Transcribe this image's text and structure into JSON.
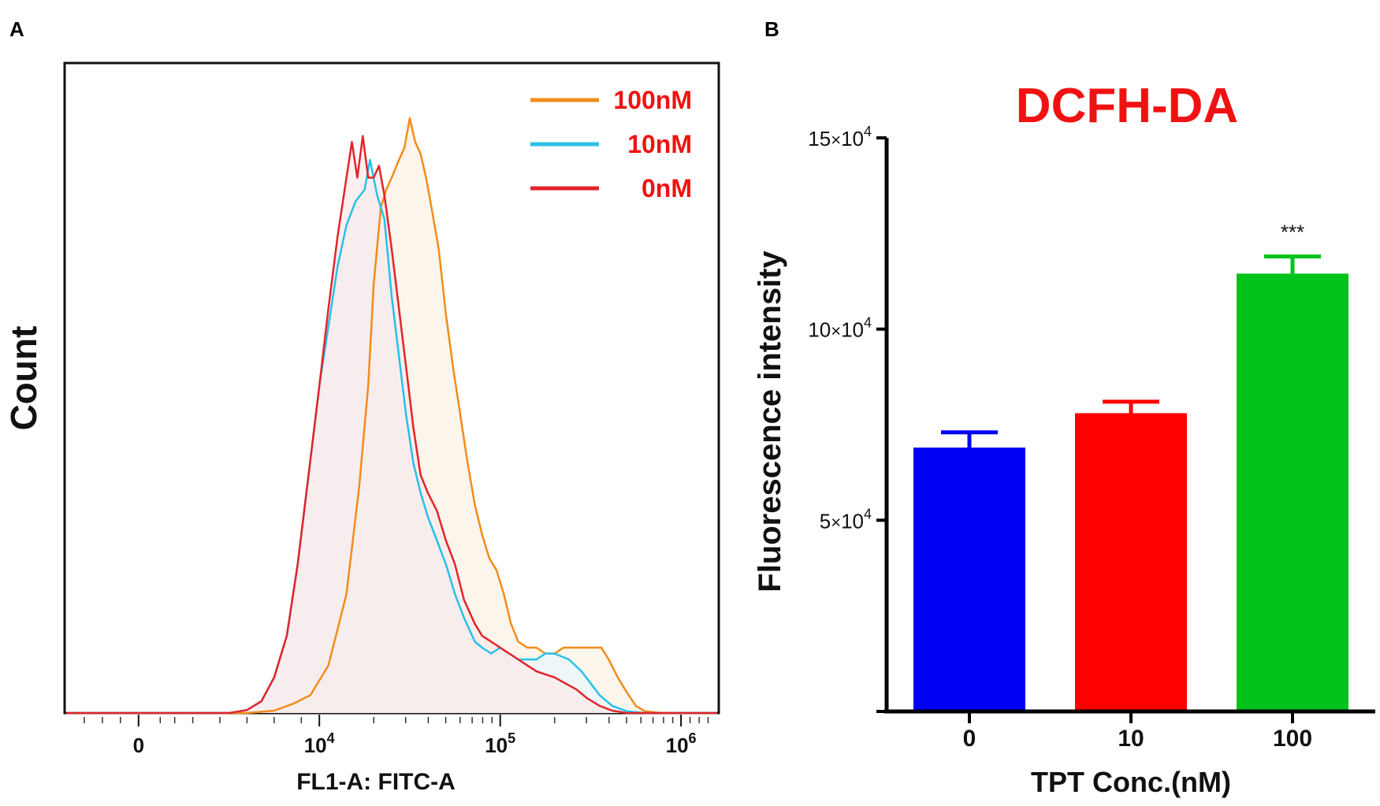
{
  "chart_data": [
    {
      "panel": "A",
      "type": "line",
      "xlabel": "FL1-A: FITC-A",
      "ylabel": "Count",
      "x_scale": "log (display)",
      "x_ticks": [
        {
          "value": 0,
          "base": "0",
          "exp": ""
        },
        {
          "value": 10000,
          "base": "10",
          "exp": "4"
        },
        {
          "value": 100000,
          "base": "10",
          "exp": "5"
        },
        {
          "value": 1000000,
          "base": "10",
          "exp": "6"
        }
      ],
      "y_range": [
        0,
        1
      ],
      "legend_placement": "top-right",
      "series": [
        {
          "name": "100nM",
          "color": "#f28c1b",
          "fill": "#fbf1e6",
          "points": [
            [
              -0.4,
              0.0
            ],
            [
              0.0,
              0.0
            ],
            [
              0.2,
              0.0
            ],
            [
              0.4,
              0.0
            ],
            [
              0.6,
              0.0
            ],
            [
              0.75,
              0.004
            ],
            [
              0.85,
              0.015
            ],
            [
              0.95,
              0.03
            ],
            [
              1.05,
              0.08
            ],
            [
              1.15,
              0.2
            ],
            [
              1.22,
              0.38
            ],
            [
              1.27,
              0.55
            ],
            [
              1.3,
              0.72
            ],
            [
              1.34,
              0.85
            ],
            [
              1.37,
              0.88
            ],
            [
              1.4,
              0.9
            ],
            [
              1.44,
              0.93
            ],
            [
              1.47,
              0.95
            ],
            [
              1.5,
              1.0
            ],
            [
              1.53,
              0.96
            ],
            [
              1.56,
              0.94
            ],
            [
              1.59,
              0.9
            ],
            [
              1.62,
              0.85
            ],
            [
              1.66,
              0.78
            ],
            [
              1.7,
              0.67
            ],
            [
              1.74,
              0.58
            ],
            [
              1.78,
              0.5
            ],
            [
              1.82,
              0.42
            ],
            [
              1.86,
              0.35
            ],
            [
              1.9,
              0.3
            ],
            [
              1.94,
              0.26
            ],
            [
              1.98,
              0.24
            ],
            [
              2.02,
              0.2
            ],
            [
              2.06,
              0.15
            ],
            [
              2.1,
              0.12
            ],
            [
              2.15,
              0.11
            ],
            [
              2.2,
              0.11
            ],
            [
              2.25,
              0.1
            ],
            [
              2.3,
              0.1
            ],
            [
              2.35,
              0.11
            ],
            [
              2.4,
              0.11
            ],
            [
              2.45,
              0.11
            ],
            [
              2.5,
              0.11
            ],
            [
              2.56,
              0.11
            ],
            [
              2.6,
              0.09
            ],
            [
              2.65,
              0.06
            ],
            [
              2.7,
              0.035
            ],
            [
              2.75,
              0.012
            ],
            [
              2.8,
              0.003
            ],
            [
              2.9,
              0.0
            ],
            [
              3.2,
              0.0
            ]
          ]
        },
        {
          "name": "10nM",
          "color": "#27c1e8",
          "fill": "#eaf6fb",
          "points": [
            [
              -0.4,
              0.0
            ],
            [
              0.5,
              0.0
            ],
            [
              0.6,
              0.005
            ],
            [
              0.68,
              0.02
            ],
            [
              0.75,
              0.06
            ],
            [
              0.82,
              0.13
            ],
            [
              0.88,
              0.25
            ],
            [
              0.94,
              0.4
            ],
            [
              1.0,
              0.55
            ],
            [
              1.05,
              0.65
            ],
            [
              1.1,
              0.75
            ],
            [
              1.15,
              0.82
            ],
            [
              1.2,
              0.86
            ],
            [
              1.25,
              0.88
            ],
            [
              1.28,
              0.93
            ],
            [
              1.32,
              0.87
            ],
            [
              1.36,
              0.83
            ],
            [
              1.4,
              0.7
            ],
            [
              1.44,
              0.6
            ],
            [
              1.48,
              0.5
            ],
            [
              1.52,
              0.42
            ],
            [
              1.56,
              0.37
            ],
            [
              1.6,
              0.33
            ],
            [
              1.65,
              0.29
            ],
            [
              1.7,
              0.25
            ],
            [
              1.75,
              0.2
            ],
            [
              1.8,
              0.16
            ],
            [
              1.86,
              0.12
            ],
            [
              1.9,
              0.11
            ],
            [
              1.95,
              0.1
            ],
            [
              2.0,
              0.11
            ],
            [
              2.05,
              0.1
            ],
            [
              2.1,
              0.09
            ],
            [
              2.15,
              0.09
            ],
            [
              2.2,
              0.09
            ],
            [
              2.25,
              0.1
            ],
            [
              2.3,
              0.1
            ],
            [
              2.38,
              0.09
            ],
            [
              2.45,
              0.07
            ],
            [
              2.5,
              0.05
            ],
            [
              2.55,
              0.03
            ],
            [
              2.62,
              0.012
            ],
            [
              2.7,
              0.003
            ],
            [
              2.8,
              0.0
            ],
            [
              3.2,
              0.0
            ]
          ]
        },
        {
          "name": "0nM",
          "color": "#e3242b",
          "fill": "#fbe9ea",
          "points": [
            [
              -0.4,
              0.0
            ],
            [
              0.5,
              0.0
            ],
            [
              0.6,
              0.005
            ],
            [
              0.68,
              0.02
            ],
            [
              0.75,
              0.06
            ],
            [
              0.82,
              0.13
            ],
            [
              0.88,
              0.25
            ],
            [
              0.94,
              0.4
            ],
            [
              1.0,
              0.55
            ],
            [
              1.05,
              0.68
            ],
            [
              1.1,
              0.8
            ],
            [
              1.15,
              0.9
            ],
            [
              1.18,
              0.96
            ],
            [
              1.21,
              0.9
            ],
            [
              1.24,
              0.97
            ],
            [
              1.27,
              0.9
            ],
            [
              1.3,
              0.9
            ],
            [
              1.33,
              0.92
            ],
            [
              1.36,
              0.87
            ],
            [
              1.4,
              0.78
            ],
            [
              1.44,
              0.68
            ],
            [
              1.48,
              0.58
            ],
            [
              1.52,
              0.48
            ],
            [
              1.56,
              0.4
            ],
            [
              1.6,
              0.37
            ],
            [
              1.65,
              0.34
            ],
            [
              1.7,
              0.29
            ],
            [
              1.75,
              0.25
            ],
            [
              1.8,
              0.19
            ],
            [
              1.86,
              0.15
            ],
            [
              1.9,
              0.13
            ],
            [
              1.95,
              0.12
            ],
            [
              2.0,
              0.11
            ],
            [
              2.05,
              0.1
            ],
            [
              2.1,
              0.09
            ],
            [
              2.15,
              0.08
            ],
            [
              2.2,
              0.07
            ],
            [
              2.25,
              0.065
            ],
            [
              2.3,
              0.06
            ],
            [
              2.36,
              0.05
            ],
            [
              2.42,
              0.04
            ],
            [
              2.48,
              0.025
            ],
            [
              2.55,
              0.012
            ],
            [
              2.62,
              0.004
            ],
            [
              2.7,
              0.0
            ],
            [
              3.2,
              0.0
            ]
          ]
        }
      ],
      "legend": [
        {
          "label": "100nM",
          "color": "#f28c1b"
        },
        {
          "label": "10nM",
          "color": "#27c1e8"
        },
        {
          "label": "0nM",
          "color": "#e3242b"
        }
      ]
    },
    {
      "panel": "B",
      "type": "bar",
      "title": "DCFH-DA",
      "title_color": "#f01212",
      "xlabel": "TPT Conc.(nM)",
      "ylabel": "Fluorescence intensity",
      "categories": [
        "0",
        "10",
        "100"
      ],
      "values": [
        69000,
        78000,
        114500
      ],
      "errors": [
        4000,
        3000,
        4500
      ],
      "colors": [
        "#0000f5",
        "#ff0000",
        "#00c21a"
      ],
      "annotations": [
        "",
        "",
        "***"
      ],
      "ylim": [
        0,
        150000
      ],
      "y_ticks": [
        {
          "value": 50000,
          "base": "5",
          "exp": "4"
        },
        {
          "value": 100000,
          "base": "10",
          "exp": "4"
        },
        {
          "value": 150000,
          "base": "15",
          "exp": "4"
        }
      ],
      "y_tick_times": "×"
    }
  ],
  "panels": {
    "a_label": "A",
    "b_label": "B"
  }
}
